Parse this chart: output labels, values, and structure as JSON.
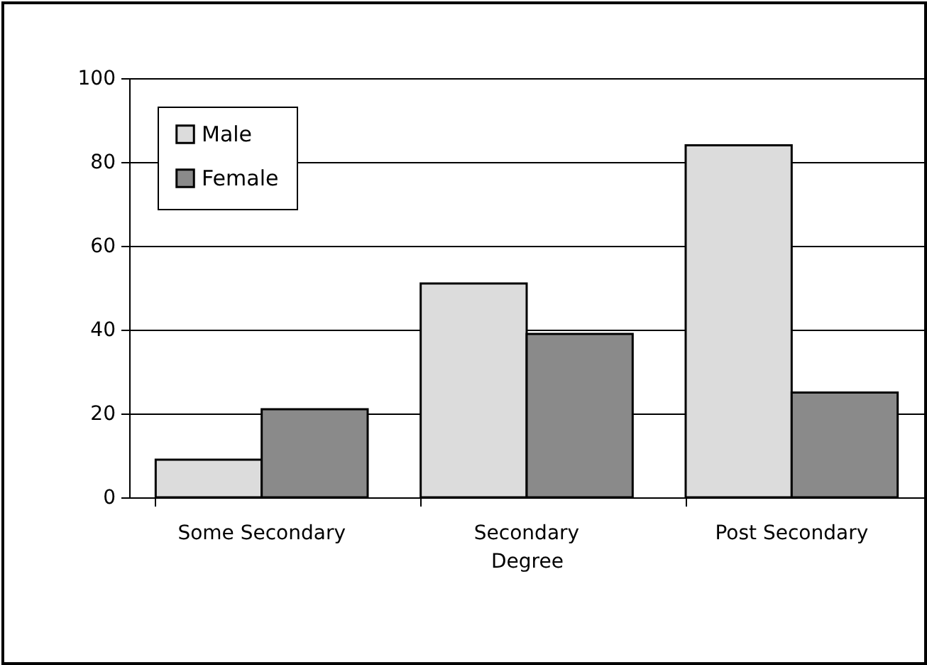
{
  "chart_data": {
    "type": "bar",
    "xlabel": "Degree",
    "categories": [
      "Some Secondary",
      "Secondary",
      "Post Secondary"
    ],
    "series": [
      {
        "name": "Male",
        "color": "#dcdcdc",
        "values": [
          9,
          51,
          84
        ]
      },
      {
        "name": "Female",
        "color": "#8a8a8a",
        "values": [
          21,
          39,
          25
        ]
      }
    ],
    "ylim": [
      0,
      100
    ],
    "yticks": [
      0,
      20,
      40,
      60,
      80,
      100
    ],
    "grid": "y",
    "legend": "top left"
  }
}
